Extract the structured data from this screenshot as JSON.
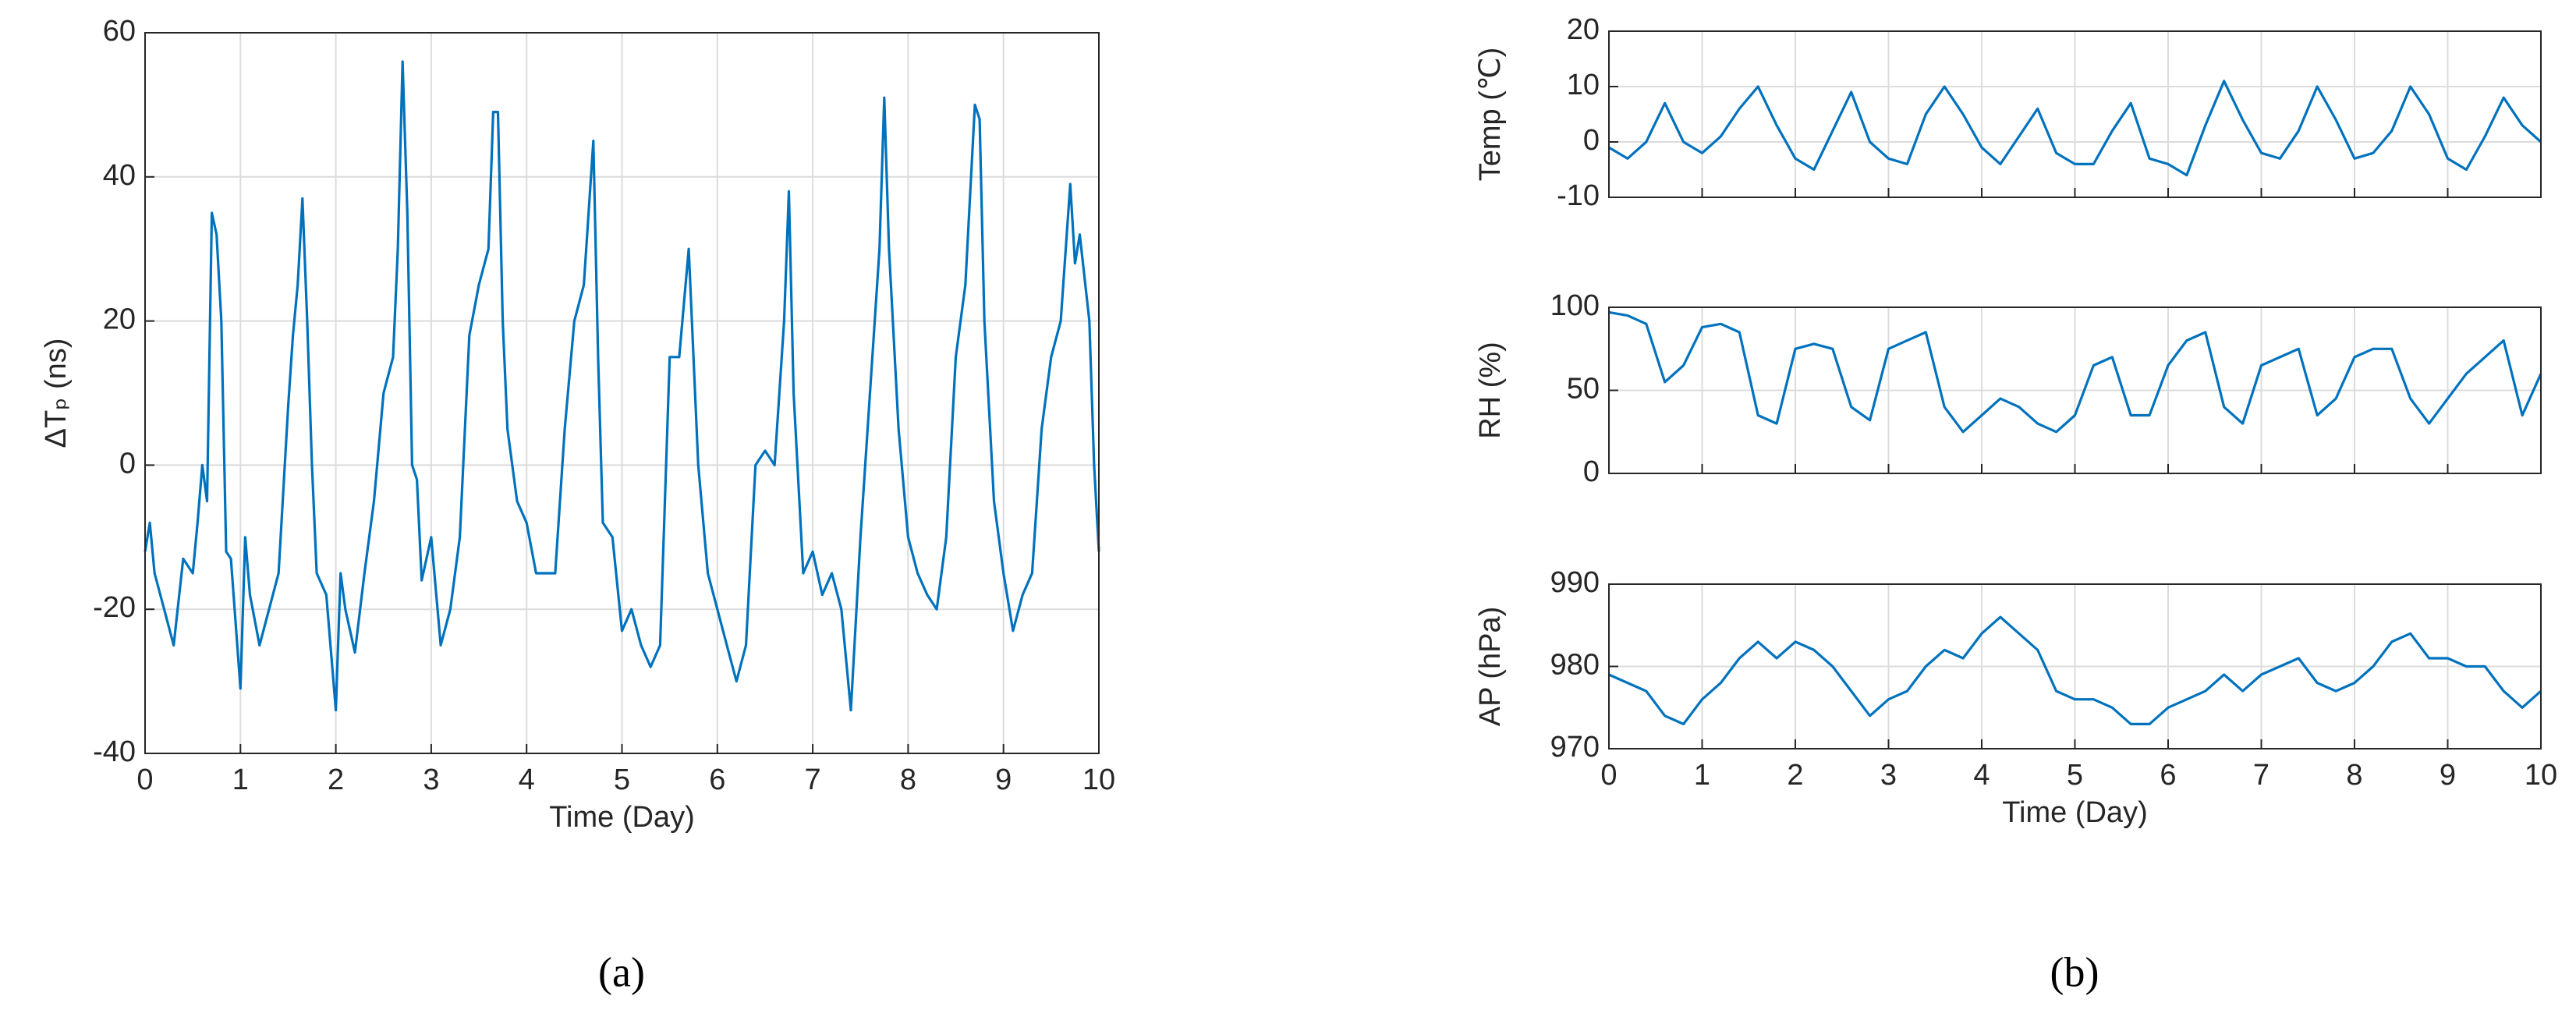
{
  "chart_data": [
    {
      "type": "line",
      "panel_label": "(a)",
      "x_label": "Time (Day)",
      "y_label": "ΔTₚ (ns)",
      "xlim": [
        0,
        10
      ],
      "xticks": [
        0,
        1,
        2,
        3,
        4,
        5,
        6,
        7,
        8,
        9,
        10
      ],
      "ylim": [
        -40,
        60
      ],
      "yticks": [
        -40,
        -20,
        0,
        20,
        40,
        60
      ],
      "grid": true,
      "show_xtick_labels": true,
      "x": [
        0,
        0.05,
        0.1,
        0.2,
        0.3,
        0.4,
        0.5,
        0.55,
        0.6,
        0.65,
        0.7,
        0.75,
        0.8,
        0.85,
        0.9,
        1.0,
        1.05,
        1.1,
        1.2,
        1.3,
        1.4,
        1.5,
        1.55,
        1.6,
        1.65,
        1.7,
        1.75,
        1.8,
        1.9,
        2.0,
        2.05,
        2.1,
        2.2,
        2.3,
        2.4,
        2.5,
        2.6,
        2.65,
        2.7,
        2.75,
        2.8,
        2.85,
        2.9,
        3.0,
        3.1,
        3.2,
        3.3,
        3.4,
        3.5,
        3.6,
        3.65,
        3.7,
        3.75,
        3.8,
        3.9,
        4.0,
        4.1,
        4.2,
        4.3,
        4.4,
        4.5,
        4.6,
        4.7,
        4.75,
        4.8,
        4.9,
        5.0,
        5.1,
        5.2,
        5.3,
        5.4,
        5.5,
        5.6,
        5.7,
        5.75,
        5.8,
        5.9,
        6.0,
        6.1,
        6.2,
        6.3,
        6.4,
        6.5,
        6.6,
        6.7,
        6.75,
        6.8,
        6.9,
        7.0,
        7.1,
        7.2,
        7.3,
        7.4,
        7.5,
        7.6,
        7.7,
        7.75,
        7.8,
        7.9,
        8.0,
        8.1,
        8.2,
        8.3,
        8.4,
        8.5,
        8.6,
        8.7,
        8.75,
        8.8,
        8.9,
        9.0,
        9.1,
        9.2,
        9.3,
        9.4,
        9.5,
        9.6,
        9.7,
        9.75,
        9.8,
        9.9,
        9.95,
        10
      ],
      "series": [
        {
          "color": "#0072bd",
          "values": [
            -12,
            -8,
            -15,
            -20,
            -25,
            -13,
            -15,
            -8,
            0,
            -5,
            35,
            32,
            20,
            -12,
            -13,
            -31,
            -10,
            -18,
            -25,
            -20,
            -15,
            8,
            18,
            25,
            37,
            20,
            0,
            -15,
            -18,
            -34,
            -15,
            -20,
            -26,
            -15,
            -5,
            10,
            15,
            30,
            56,
            35,
            0,
            -2,
            -16,
            -10,
            -25,
            -20,
            -10,
            18,
            25,
            30,
            49,
            49,
            20,
            5,
            -5,
            -8,
            -15,
            -15,
            -15,
            5,
            20,
            25,
            45,
            15,
            -8,
            -10,
            -23,
            -20,
            -25,
            -28,
            -25,
            15,
            15,
            30,
            15,
            0,
            -15,
            -20,
            -25,
            -30,
            -25,
            0,
            2,
            0,
            20,
            38,
            10,
            -15,
            -12,
            -18,
            -15,
            -20,
            -34,
            -10,
            10,
            30,
            51,
            30,
            5,
            -10,
            -15,
            -18,
            -20,
            -10,
            15,
            25,
            50,
            48,
            20,
            -5,
            -15,
            -23,
            -18,
            -15,
            5,
            15,
            20,
            39,
            28,
            32,
            20,
            0,
            -12
          ]
        }
      ]
    },
    {
      "type": "line",
      "panel_label": "(b)",
      "y_label": "Temp (℃)",
      "xlim": [
        0,
        10
      ],
      "xticks": [
        0,
        1,
        2,
        3,
        4,
        5,
        6,
        7,
        8,
        9,
        10
      ],
      "ylim": [
        -10,
        20
      ],
      "yticks": [
        -10,
        0,
        10,
        20
      ],
      "grid": true,
      "show_xtick_labels": false,
      "x": [
        0,
        0.2,
        0.4,
        0.6,
        0.8,
        1,
        1.2,
        1.4,
        1.6,
        1.8,
        2,
        2.2,
        2.4,
        2.6,
        2.8,
        3,
        3.2,
        3.4,
        3.6,
        3.8,
        4,
        4.2,
        4.4,
        4.6,
        4.8,
        5,
        5.2,
        5.4,
        5.6,
        5.8,
        6,
        6.2,
        6.4,
        6.6,
        6.8,
        7,
        7.2,
        7.4,
        7.6,
        7.8,
        8,
        8.2,
        8.4,
        8.6,
        8.8,
        9,
        9.2,
        9.4,
        9.6,
        9.8,
        10
      ],
      "series": [
        {
          "color": "#0072bd",
          "values": [
            -1,
            -3,
            0,
            7,
            0,
            -2,
            1,
            6,
            10,
            3,
            -3,
            -5,
            2,
            9,
            0,
            -3,
            -4,
            5,
            10,
            5,
            -1,
            -4,
            1,
            6,
            -2,
            -4,
            -4,
            2,
            7,
            -3,
            -4,
            -6,
            3,
            11,
            4,
            -2,
            -3,
            2,
            10,
            4,
            -3,
            -2,
            2,
            10,
            5,
            -3,
            -5,
            1,
            8,
            3,
            0
          ]
        }
      ]
    },
    {
      "type": "line",
      "y_label": "RH (%)",
      "xlim": [
        0,
        10
      ],
      "xticks": [
        0,
        1,
        2,
        3,
        4,
        5,
        6,
        7,
        8,
        9,
        10
      ],
      "ylim": [
        0,
        100
      ],
      "yticks": [
        0,
        50,
        100
      ],
      "grid": true,
      "show_xtick_labels": false,
      "x": [
        0,
        0.2,
        0.4,
        0.6,
        0.8,
        1,
        1.2,
        1.4,
        1.6,
        1.8,
        2,
        2.2,
        2.4,
        2.6,
        2.8,
        3,
        3.2,
        3.4,
        3.6,
        3.8,
        4,
        4.2,
        4.4,
        4.6,
        4.8,
        5,
        5.2,
        5.4,
        5.6,
        5.8,
        6,
        6.2,
        6.4,
        6.6,
        6.8,
        7,
        7.2,
        7.4,
        7.6,
        7.8,
        8,
        8.2,
        8.4,
        8.6,
        8.8,
        9,
        9.2,
        9.4,
        9.6,
        9.8,
        10
      ],
      "series": [
        {
          "color": "#0072bd",
          "values": [
            97,
            95,
            90,
            55,
            65,
            88,
            90,
            85,
            35,
            30,
            75,
            78,
            75,
            40,
            32,
            75,
            80,
            85,
            40,
            25,
            35,
            45,
            40,
            30,
            25,
            35,
            65,
            70,
            35,
            35,
            65,
            80,
            85,
            40,
            30,
            65,
            70,
            75,
            35,
            45,
            70,
            75,
            75,
            45,
            30,
            45,
            60,
            70,
            80,
            35,
            60
          ]
        }
      ]
    },
    {
      "type": "line",
      "x_label": "Time (Day)",
      "y_label": "AP (hPa)",
      "xlim": [
        0,
        10
      ],
      "xticks": [
        0,
        1,
        2,
        3,
        4,
        5,
        6,
        7,
        8,
        9,
        10
      ],
      "ylim": [
        970,
        990
      ],
      "yticks": [
        970,
        980,
        990
      ],
      "grid": true,
      "show_xtick_labels": true,
      "x": [
        0,
        0.2,
        0.4,
        0.6,
        0.8,
        1,
        1.2,
        1.4,
        1.6,
        1.8,
        2,
        2.2,
        2.4,
        2.6,
        2.8,
        3,
        3.2,
        3.4,
        3.6,
        3.8,
        4,
        4.2,
        4.4,
        4.6,
        4.8,
        5,
        5.2,
        5.4,
        5.6,
        5.8,
        6,
        6.2,
        6.4,
        6.6,
        6.8,
        7,
        7.2,
        7.4,
        7.6,
        7.8,
        8,
        8.2,
        8.4,
        8.6,
        8.8,
        9,
        9.2,
        9.4,
        9.6,
        9.8,
        10
      ],
      "series": [
        {
          "color": "#0072bd",
          "values": [
            979,
            978,
            977,
            974,
            973,
            976,
            978,
            981,
            983,
            981,
            983,
            982,
            980,
            977,
            974,
            976,
            977,
            980,
            982,
            981,
            984,
            986,
            984,
            982,
            977,
            976,
            976,
            975,
            973,
            973,
            975,
            976,
            977,
            979,
            977,
            979,
            980,
            981,
            978,
            977,
            978,
            980,
            983,
            984,
            981,
            981,
            980,
            980,
            977,
            975,
            977
          ]
        }
      ]
    }
  ]
}
